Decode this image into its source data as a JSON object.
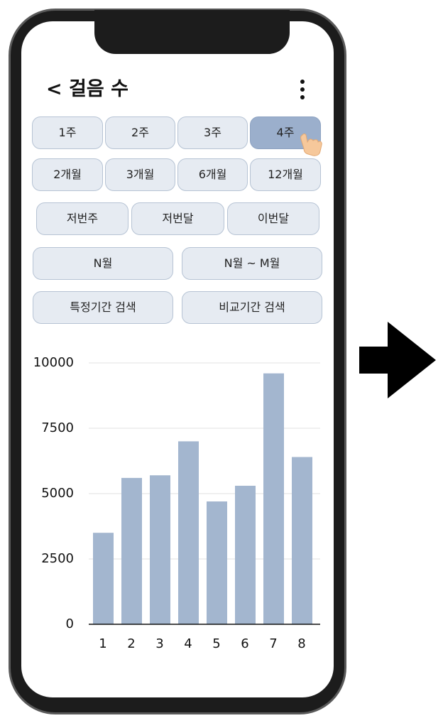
{
  "header": {
    "title": "< 걸음 수"
  },
  "period_buttons": {
    "row1": [
      "1주",
      "2주",
      "3주",
      "4주"
    ],
    "row2": [
      "2개월",
      "3개월",
      "6개월",
      "12개월"
    ],
    "row3": [
      "저번주",
      "저번달",
      "이번달"
    ],
    "row4": [
      "N월",
      "N월 ~ M월"
    ],
    "row5": [
      "특정기간 검색",
      "비교기간 검색"
    ],
    "selected": "4주"
  },
  "colors": {
    "button_bg": "#e6ebf2",
    "button_selected_bg": "#9bafcc",
    "bar_color": "#a3b6cf",
    "phone_frame": "#1c1c1c"
  },
  "icons": [
    "more-vert-icon",
    "tap-hand-icon",
    "right-arrow-icon"
  ],
  "chart_data": {
    "type": "bar",
    "categories": [
      "1",
      "2",
      "3",
      "4",
      "5",
      "6",
      "7",
      "8"
    ],
    "values": [
      3500,
      5600,
      5700,
      7000,
      4700,
      5300,
      9600,
      6400
    ],
    "y_ticks": [
      "0",
      "2500",
      "5000",
      "7500",
      "10000"
    ],
    "ylim": [
      0,
      10000
    ],
    "grid": true,
    "title": "",
    "xlabel": "",
    "ylabel": ""
  }
}
